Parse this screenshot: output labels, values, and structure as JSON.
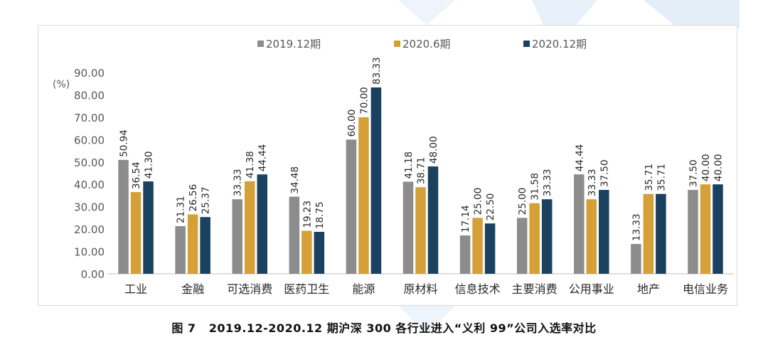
{
  "chart_data": {
    "type": "bar",
    "title": "",
    "ylabel": "(%)",
    "xlabel": "",
    "ylim": [
      0,
      90
    ],
    "yticks": [
      "0.00",
      "10.00",
      "20.00",
      "30.00",
      "40.00",
      "50.00",
      "60.00",
      "70.00",
      "80.00",
      "90.00"
    ],
    "grid": false,
    "legend_position": "top",
    "categories": [
      "工业",
      "金融",
      "可选消费",
      "医药卫生",
      "能源",
      "原材料",
      "信息技术",
      "主要消费",
      "公用事业",
      "地产",
      "电信业务"
    ],
    "series": [
      {
        "name": "2019.12期",
        "color": "#8c8c8c",
        "values": [
          50.94,
          21.31,
          33.33,
          34.48,
          60.0,
          41.18,
          17.14,
          25.0,
          44.44,
          13.33,
          37.5
        ]
      },
      {
        "name": "2020.6期",
        "color": "#d4a037",
        "values": [
          36.54,
          26.56,
          41.38,
          19.23,
          70.0,
          38.71,
          25.0,
          31.58,
          33.33,
          35.71,
          40.0
        ]
      },
      {
        "name": "2020.12期",
        "color": "#1a4160",
        "values": [
          41.3,
          25.37,
          44.44,
          18.75,
          83.33,
          48.0,
          22.5,
          33.33,
          37.5,
          35.71,
          40.0
        ]
      }
    ]
  },
  "caption": {
    "figure_number": "图 7",
    "text": "2019.12-2020.12 期沪深 300 各行业进入“义利 99”公司入选率对比"
  },
  "colors": {
    "axis": "#bfbfbf",
    "tick_text": "#595959",
    "background_shape": "#e8f1fa"
  }
}
